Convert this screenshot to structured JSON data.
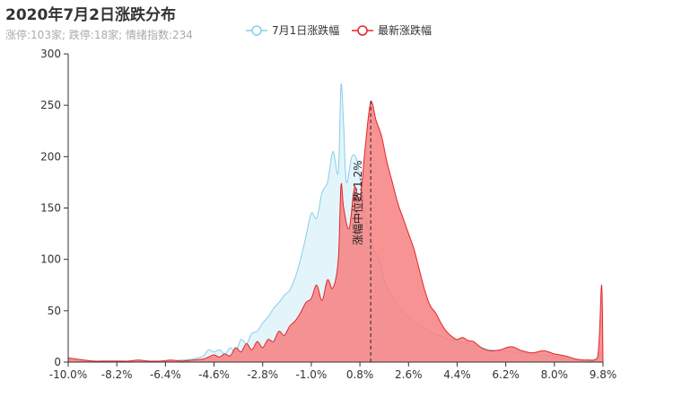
{
  "chart": {
    "title": "2020年7月2日涨跌分布",
    "subtitle": "涨停:103家; 跌停:18家; 情绪指数:234"
  },
  "chart_data": {
    "type": "area",
    "title": "2020年7月2日涨跌分布",
    "subtitle": "涨停:103家; 跌停:18家; 情绪指数:234",
    "xlabel": "",
    "ylabel": "",
    "x_unit": "%",
    "xlim": [
      -10.0,
      9.8
    ],
    "ylim": [
      0,
      300
    ],
    "x_ticks": [
      "-10.0%",
      "-8.2%",
      "-6.4%",
      "-4.6%",
      "-2.8%",
      "-1.0%",
      "0.8%",
      "2.6%",
      "4.4%",
      "6.2%",
      "8.0%",
      "9.8%"
    ],
    "y_ticks": [
      0,
      50,
      100,
      150,
      200,
      250,
      300
    ],
    "legend_position": "top-center",
    "grid": false,
    "annotation": {
      "x": 1.2,
      "label": "涨幅中位数:1.2%"
    },
    "series": [
      {
        "name": "7月1日涨跌幅",
        "color": "#87CEEB",
        "fill": "#E0F4FB",
        "points": [
          [
            -10.0,
            3
          ],
          [
            -9.7,
            1
          ],
          [
            -9.4,
            1
          ],
          [
            -9.0,
            1
          ],
          [
            -8.6,
            1
          ],
          [
            -8.2,
            1
          ],
          [
            -7.8,
            1
          ],
          [
            -7.4,
            1
          ],
          [
            -7.0,
            1
          ],
          [
            -6.6,
            1
          ],
          [
            -6.2,
            1
          ],
          [
            -5.8,
            2
          ],
          [
            -5.4,
            3
          ],
          [
            -5.0,
            6
          ],
          [
            -4.8,
            12
          ],
          [
            -4.6,
            10
          ],
          [
            -4.4,
            12
          ],
          [
            -4.2,
            8
          ],
          [
            -4.0,
            14
          ],
          [
            -3.8,
            10
          ],
          [
            -3.6,
            22
          ],
          [
            -3.4,
            18
          ],
          [
            -3.2,
            28
          ],
          [
            -3.0,
            30
          ],
          [
            -2.8,
            38
          ],
          [
            -2.6,
            44
          ],
          [
            -2.4,
            52
          ],
          [
            -2.2,
            58
          ],
          [
            -2.0,
            65
          ],
          [
            -1.8,
            70
          ],
          [
            -1.6,
            82
          ],
          [
            -1.4,
            100
          ],
          [
            -1.2,
            122
          ],
          [
            -1.0,
            145
          ],
          [
            -0.8,
            140
          ],
          [
            -0.6,
            165
          ],
          [
            -0.4,
            175
          ],
          [
            -0.2,
            205
          ],
          [
            0.0,
            185
          ],
          [
            0.1,
            270
          ],
          [
            0.2,
            230
          ],
          [
            0.3,
            175
          ],
          [
            0.5,
            200
          ],
          [
            0.7,
            195
          ],
          [
            0.9,
            160
          ],
          [
            1.1,
            130
          ],
          [
            1.3,
            110
          ],
          [
            1.5,
            100
          ],
          [
            1.7,
            80
          ],
          [
            1.9,
            68
          ],
          [
            2.1,
            60
          ],
          [
            2.3,
            52
          ],
          [
            2.5,
            46
          ],
          [
            2.7,
            42
          ],
          [
            2.9,
            38
          ],
          [
            3.1,
            34
          ],
          [
            3.3,
            32
          ],
          [
            3.5,
            28
          ],
          [
            3.7,
            26
          ],
          [
            3.9,
            24
          ],
          [
            4.1,
            22
          ],
          [
            4.4,
            20
          ],
          [
            4.8,
            18
          ],
          [
            5.2,
            15
          ],
          [
            5.6,
            12
          ],
          [
            6.0,
            11
          ],
          [
            6.4,
            10
          ],
          [
            6.8,
            9
          ],
          [
            7.2,
            7
          ],
          [
            7.6,
            7
          ],
          [
            8.0,
            5
          ],
          [
            8.4,
            3
          ],
          [
            8.8,
            2
          ],
          [
            9.2,
            2
          ],
          [
            9.6,
            3
          ],
          [
            9.7,
            10
          ],
          [
            9.8,
            0
          ]
        ]
      },
      {
        "name": "最新涨跌幅",
        "color": "#E3262A",
        "fill": "#F78080",
        "points": [
          [
            -10.0,
            4
          ],
          [
            -9.7,
            3
          ],
          [
            -9.4,
            2
          ],
          [
            -9.0,
            1
          ],
          [
            -8.6,
            1
          ],
          [
            -8.2,
            1
          ],
          [
            -7.8,
            1
          ],
          [
            -7.4,
            2
          ],
          [
            -7.0,
            1
          ],
          [
            -6.6,
            1
          ],
          [
            -6.2,
            2
          ],
          [
            -5.8,
            1
          ],
          [
            -5.4,
            2
          ],
          [
            -5.0,
            3
          ],
          [
            -4.8,
            5
          ],
          [
            -4.6,
            7
          ],
          [
            -4.4,
            5
          ],
          [
            -4.2,
            8
          ],
          [
            -4.0,
            6
          ],
          [
            -3.8,
            14
          ],
          [
            -3.6,
            10
          ],
          [
            -3.4,
            18
          ],
          [
            -3.2,
            12
          ],
          [
            -3.0,
            20
          ],
          [
            -2.8,
            14
          ],
          [
            -2.6,
            22
          ],
          [
            -2.4,
            20
          ],
          [
            -2.2,
            30
          ],
          [
            -2.0,
            26
          ],
          [
            -1.8,
            35
          ],
          [
            -1.6,
            40
          ],
          [
            -1.4,
            48
          ],
          [
            -1.2,
            58
          ],
          [
            -1.0,
            62
          ],
          [
            -0.8,
            75
          ],
          [
            -0.6,
            60
          ],
          [
            -0.4,
            80
          ],
          [
            -0.2,
            72
          ],
          [
            0.0,
            100
          ],
          [
            0.1,
            172
          ],
          [
            0.2,
            150
          ],
          [
            0.4,
            130
          ],
          [
            0.6,
            170
          ],
          [
            0.8,
            158
          ],
          [
            1.0,
            210
          ],
          [
            1.2,
            253
          ],
          [
            1.4,
            235
          ],
          [
            1.6,
            220
          ],
          [
            1.8,
            195
          ],
          [
            2.0,
            175
          ],
          [
            2.2,
            155
          ],
          [
            2.4,
            140
          ],
          [
            2.6,
            125
          ],
          [
            2.8,
            110
          ],
          [
            3.0,
            90
          ],
          [
            3.2,
            70
          ],
          [
            3.4,
            55
          ],
          [
            3.6,
            48
          ],
          [
            3.8,
            38
          ],
          [
            4.0,
            30
          ],
          [
            4.2,
            25
          ],
          [
            4.4,
            22
          ],
          [
            4.6,
            24
          ],
          [
            4.8,
            21
          ],
          [
            5.0,
            20
          ],
          [
            5.3,
            14
          ],
          [
            5.6,
            11
          ],
          [
            6.0,
            12
          ],
          [
            6.4,
            15
          ],
          [
            6.8,
            11
          ],
          [
            7.2,
            9
          ],
          [
            7.6,
            11
          ],
          [
            8.0,
            8
          ],
          [
            8.4,
            6
          ],
          [
            8.8,
            3
          ],
          [
            9.2,
            2
          ],
          [
            9.6,
            5
          ],
          [
            9.75,
            75
          ],
          [
            9.8,
            0
          ]
        ]
      }
    ]
  }
}
